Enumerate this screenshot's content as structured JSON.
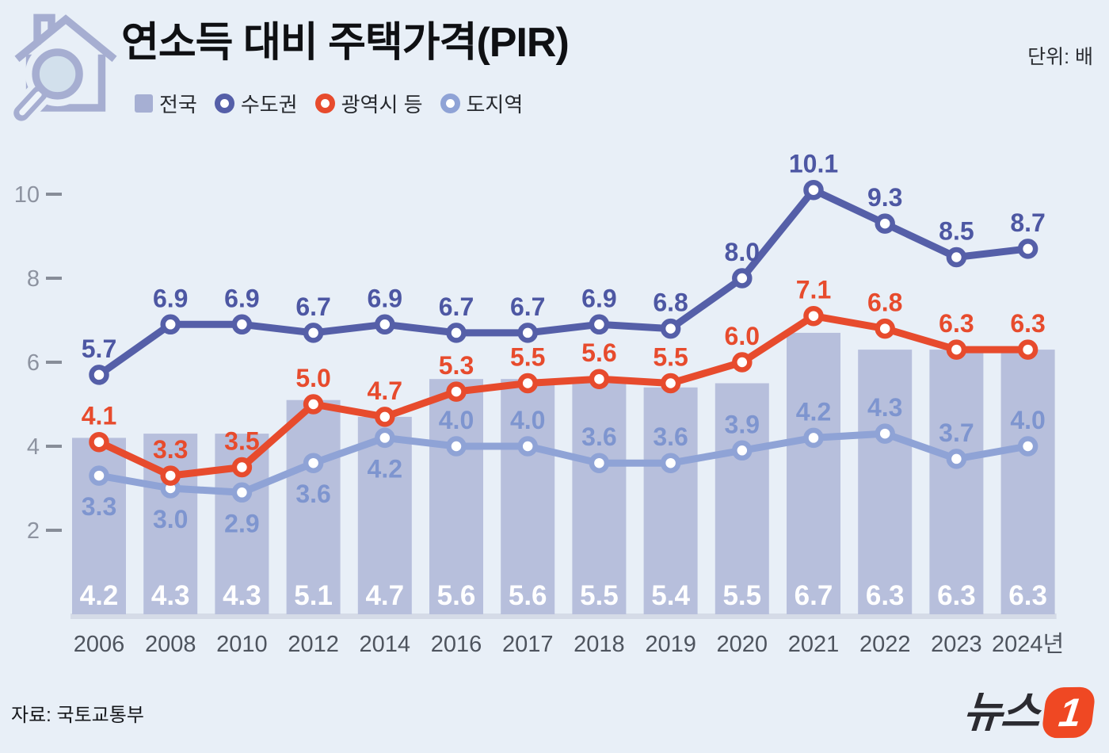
{
  "header": {
    "title": "연소득 대비 주택가격(PIR)",
    "unit_label": "단위: 배"
  },
  "legend": [
    {
      "label": "전국",
      "type": "bar",
      "color": "#a6afd3"
    },
    {
      "label": "수도권",
      "type": "line",
      "color": "#555fa8"
    },
    {
      "label": "광역시 등",
      "type": "line",
      "color": "#e74b2d"
    },
    {
      "label": "도지역",
      "type": "line",
      "color": "#8fa3d6"
    }
  ],
  "chart_data": {
    "type": "bar+line",
    "title": "연소득 대비 주택가격(PIR)",
    "unit": "배",
    "xlabel": "",
    "ylabel": "",
    "categories": [
      "2006",
      "2008",
      "2010",
      "2012",
      "2014",
      "2016",
      "2017",
      "2018",
      "2019",
      "2020",
      "2021",
      "2022",
      "2023",
      "2024년"
    ],
    "yticks": [
      2,
      4,
      6,
      8,
      10
    ],
    "ylim": [
      0,
      11
    ],
    "grid": false,
    "legend_position": "top-left",
    "series": [
      {
        "key": "nationwide",
        "name": "전국",
        "type": "bar",
        "color": "#b7bfdc",
        "label_color": "#ffffff",
        "values": [
          4.2,
          4.3,
          4.3,
          5.1,
          4.7,
          5.6,
          5.6,
          5.5,
          5.4,
          5.5,
          6.7,
          6.3,
          6.3,
          6.3
        ]
      },
      {
        "key": "provinces",
        "name": "도지역",
        "type": "line",
        "color": "#8fa3d6",
        "label_color": "#7e95cf",
        "label_below_indices": [
          0,
          1,
          2,
          3,
          4
        ],
        "values": [
          3.3,
          3.0,
          2.9,
          3.6,
          4.2,
          4.0,
          4.0,
          3.6,
          3.6,
          3.9,
          4.2,
          4.3,
          3.7,
          4.0
        ]
      },
      {
        "key": "metro-cities",
        "name": "광역시 등",
        "type": "line",
        "color": "#e74b2d",
        "label_color": "#e74b2d",
        "values": [
          4.1,
          3.3,
          3.5,
          5.0,
          4.7,
          5.3,
          5.5,
          5.6,
          5.5,
          6.0,
          7.1,
          6.8,
          6.3,
          6.3
        ]
      },
      {
        "key": "capital-area",
        "name": "수도권",
        "type": "line",
        "color": "#555fa8",
        "label_color": "#4d57a3",
        "values": [
          5.7,
          6.9,
          6.9,
          6.7,
          6.9,
          6.7,
          6.7,
          6.9,
          6.8,
          8.0,
          10.1,
          9.3,
          8.5,
          8.7
        ]
      }
    ]
  },
  "footer": {
    "source": "자료: 국토교통부",
    "logo_text": "뉴스",
    "logo_number": "1",
    "logo_color": "#ef4823"
  }
}
